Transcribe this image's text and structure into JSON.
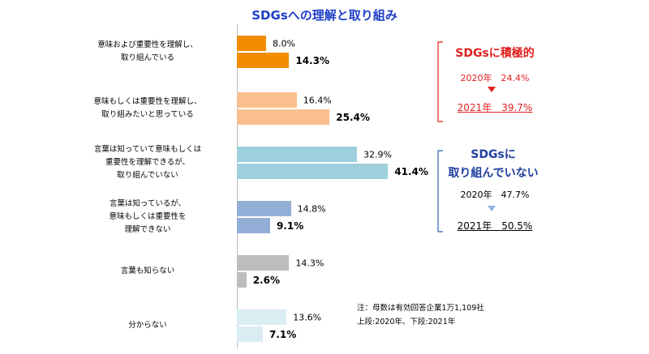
{
  "chart_data": {
    "type": "bar",
    "orientation": "horizontal",
    "title": "SDGsへの理解と取り組み",
    "categories": [
      "意味および重要性を理解し、\n取り組んでいる",
      "意味もしくは重要性を理解し、\n取り組みたいと思っている",
      "言葉は知っていて意味もしくは\n重要性を理解できるが、\n取り組んでいない",
      "言葉は知っているが、\n意味もしくは重要性を\n理解できない",
      "言葉も知らない",
      "分からない"
    ],
    "colors": [
      "#f28c00",
      "#f9c08e",
      "#9dd0dc",
      "#92aed6",
      "#bdbdbd",
      "#d9edf3"
    ],
    "series": [
      {
        "name": "2020年",
        "values": [
          8.0,
          16.4,
          32.9,
          14.8,
          14.3,
          13.6
        ],
        "value_labels": [
          "8.0%",
          "16.4%",
          "32.9%",
          "14.8%",
          "14.3%",
          "13.6%"
        ]
      },
      {
        "name": "2021年",
        "values": [
          14.3,
          25.4,
          41.4,
          9.1,
          2.6,
          7.1
        ],
        "value_labels": [
          "14.3%",
          "25.4%",
          "41.4%",
          "9.1%",
          "2.6%",
          "7.1%"
        ]
      }
    ],
    "annotations": [
      "SDGsに積極的",
      "2020年　24.4%",
      "2021年　39.7%",
      "SDGsに\n取り組んでいない",
      "2020年　47.7%",
      "2021年　50.5%",
      "注：母数は有効回答企業1万1,109社\n上段:2020年、下段:2021年"
    ]
  }
}
